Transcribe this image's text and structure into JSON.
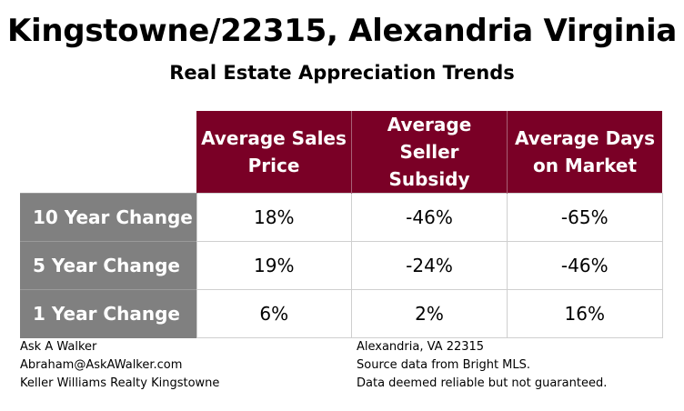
{
  "title": "Kingstowne/22315, Alexandria Virginia",
  "subtitle": "Real Estate Appreciation Trends",
  "chart_data": {
    "type": "table",
    "title": "Kingstowne/22315, Alexandria Virginia",
    "subtitle": "Real Estate Appreciation Trends",
    "columns": [
      {
        "line1": "Average Sales",
        "line2": "Price"
      },
      {
        "line1": "Average",
        "line2": "Seller Subsidy"
      },
      {
        "line1": "Average Days",
        "line2": "on Market"
      }
    ],
    "rows": [
      {
        "label": "10 Year Change",
        "values": [
          "18%",
          "-46%",
          "-65%"
        ]
      },
      {
        "label": "5 Year Change",
        "values": [
          "19%",
          "-24%",
          "-46%"
        ]
      },
      {
        "label": "1 Year Change",
        "values": [
          "6%",
          "2%",
          "16%"
        ]
      }
    ]
  },
  "footer": {
    "left": [
      "Ask A Walker",
      "Abraham@AskAWalker.com",
      "Keller Williams Realty Kingstowne"
    ],
    "right": [
      "Alexandria, VA 22315",
      "Source data from Bright MLS.",
      "Data deemed reliable but not guaranteed."
    ]
  },
  "colors": {
    "header_bg": "#7a0026",
    "row_header_bg": "#808080"
  }
}
